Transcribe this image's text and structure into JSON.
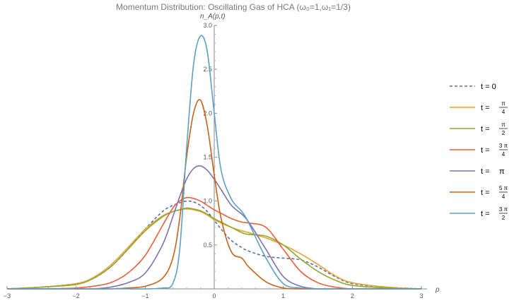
{
  "chart_data": {
    "type": "line",
    "title": "Momentum Distribution: Oscillating Gas of HCA (ω₀=1,ω₁=1/3)",
    "xlabel": "p",
    "ylabel": "n_A(p,t)",
    "xlim": [
      -3,
      3
    ],
    "ylim": [
      0,
      3.0
    ],
    "x_ticks": [
      -3,
      -2,
      -1,
      0,
      1,
      2,
      3
    ],
    "y_ticks": [
      0.5,
      1.0,
      1.5,
      2.0,
      2.5,
      3.0
    ],
    "legend_position": "right",
    "grid": false,
    "x": [
      -3.0,
      -2.5,
      -2.0,
      -1.75,
      -1.5,
      -1.25,
      -1.0,
      -0.75,
      -0.6,
      -0.5,
      -0.4,
      -0.3,
      -0.2,
      -0.1,
      0.0,
      0.1,
      0.25,
      0.4,
      0.5,
      0.75,
      1.0,
      1.25,
      1.5,
      1.75,
      2.0,
      2.5,
      3.0
    ],
    "series": [
      {
        "name": "t = 0",
        "label_main": "t = 0",
        "label_num": "",
        "label_den": "",
        "color": "#5b6fa8",
        "dashed": true,
        "values": [
          0.0,
          0.02,
          0.06,
          0.12,
          0.25,
          0.45,
          0.68,
          0.88,
          0.95,
          0.98,
          1.0,
          0.99,
          0.95,
          0.88,
          0.78,
          0.68,
          0.55,
          0.47,
          0.43,
          0.37,
          0.35,
          0.33,
          0.25,
          0.14,
          0.06,
          0.02,
          0.0
        ]
      },
      {
        "name": "t = π/4",
        "label_main": "t =",
        "label_num": "π",
        "label_den": "4",
        "color": "#f0a030",
        "dashed": false,
        "values": [
          0.0,
          0.02,
          0.06,
          0.13,
          0.27,
          0.47,
          0.68,
          0.83,
          0.88,
          0.9,
          0.91,
          0.9,
          0.88,
          0.84,
          0.79,
          0.75,
          0.7,
          0.66,
          0.64,
          0.58,
          0.5,
          0.4,
          0.28,
          0.15,
          0.07,
          0.02,
          0.0
        ]
      },
      {
        "name": "t = π/2",
        "label_main": "t =",
        "label_num": "π",
        "label_den": "2",
        "color": "#8aaa30",
        "dashed": false,
        "values": [
          0.0,
          0.02,
          0.05,
          0.12,
          0.25,
          0.45,
          0.66,
          0.82,
          0.88,
          0.9,
          0.92,
          0.91,
          0.89,
          0.85,
          0.8,
          0.76,
          0.7,
          0.64,
          0.62,
          0.6,
          0.5,
          0.34,
          0.2,
          0.1,
          0.04,
          0.01,
          0.0
        ]
      },
      {
        "name": "t = 3π/4",
        "label_main": "t =",
        "label_num": "3 π",
        "label_den": "4",
        "color": "#e8603a",
        "dashed": false,
        "values": [
          0.0,
          0.0,
          0.01,
          0.03,
          0.07,
          0.18,
          0.38,
          0.72,
          0.92,
          1.0,
          1.04,
          1.03,
          1.0,
          0.95,
          0.9,
          0.86,
          0.8,
          0.76,
          0.75,
          0.7,
          0.45,
          0.2,
          0.07,
          0.02,
          0.0,
          0.0,
          0.0
        ]
      },
      {
        "name": "t = π",
        "label_main": "t =",
        "label_num": "",
        "label_den": "",
        "label_sym": "π",
        "color": "#8070b0",
        "dashed": false,
        "values": [
          0.0,
          0.0,
          0.0,
          0.0,
          0.02,
          0.07,
          0.18,
          0.5,
          0.82,
          1.05,
          1.25,
          1.37,
          1.4,
          1.35,
          1.25,
          1.13,
          0.95,
          0.85,
          0.76,
          0.45,
          0.14,
          0.03,
          0.0,
          0.0,
          0.0,
          0.0,
          0.0
        ]
      },
      {
        "name": "t = 5π/4",
        "label_main": "t =",
        "label_num": "5 π",
        "label_den": "4",
        "color": "#c8621a",
        "dashed": false,
        "values": [
          0.0,
          0.0,
          0.0,
          0.0,
          0.0,
          0.01,
          0.03,
          0.12,
          0.35,
          0.8,
          1.5,
          2.0,
          2.15,
          1.85,
          1.3,
          0.8,
          0.42,
          0.35,
          0.25,
          0.08,
          0.01,
          0.0,
          0.0,
          0.0,
          0.0,
          0.0,
          0.0
        ]
      },
      {
        "name": "t = 3π/2",
        "label_main": "t =",
        "label_num": "3 π",
        "label_den": "2",
        "color": "#5aa0c8",
        "dashed": false,
        "values": [
          0.0,
          0.0,
          0.0,
          0.0,
          0.0,
          0.0,
          0.0,
          0.01,
          0.06,
          0.45,
          1.6,
          2.55,
          2.88,
          2.7,
          2.0,
          1.35,
          1.02,
          0.88,
          0.75,
          0.35,
          0.06,
          0.01,
          0.0,
          0.0,
          0.0,
          0.0,
          0.0
        ]
      }
    ]
  }
}
